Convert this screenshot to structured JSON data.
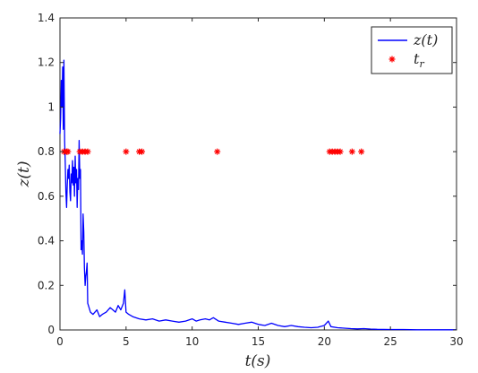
{
  "chart_data": {
    "type": "line",
    "xlabel": "t(s)",
    "ylabel": "z(t)",
    "xlim": [
      0,
      30
    ],
    "ylim": [
      0,
      1.4
    ],
    "xticks": [
      0,
      5,
      10,
      15,
      20,
      25,
      30
    ],
    "yticks": [
      0,
      0.2,
      0.4,
      0.6,
      0.8,
      1,
      1.2,
      1.4
    ],
    "xtick_labels": [
      "0",
      "5",
      "10",
      "15",
      "20",
      "25",
      "30"
    ],
    "ytick_labels": [
      "0",
      "0.2",
      "0.4",
      "0.6",
      "0.8",
      "1",
      "1.2",
      "1.4"
    ],
    "grid": false,
    "legend_position": "top-right",
    "series": [
      {
        "name": "z(t)",
        "style": "line",
        "color": "#0000ff",
        "x": [
          0,
          0.05,
          0.1,
          0.15,
          0.2,
          0.25,
          0.3,
          0.35,
          0.4,
          0.45,
          0.5,
          0.55,
          0.6,
          0.65,
          0.7,
          0.75,
          0.8,
          0.85,
          0.9,
          0.95,
          1.0,
          1.05,
          1.1,
          1.15,
          1.2,
          1.25,
          1.3,
          1.35,
          1.4,
          1.45,
          1.5,
          1.55,
          1.6,
          1.65,
          1.7,
          1.75,
          1.8,
          1.85,
          1.9,
          1.95,
          2.0,
          2.05,
          2.1,
          2.2,
          2.3,
          2.5,
          2.8,
          3.0,
          3.2,
          3.5,
          3.8,
          4.0,
          4.2,
          4.4,
          4.6,
          4.8,
          4.9,
          5.0,
          5.2,
          5.5,
          6.0,
          6.5,
          7.0,
          7.5,
          8.0,
          8.5,
          9.0,
          9.5,
          10.0,
          10.3,
          10.6,
          11.0,
          11.3,
          11.6,
          12.0,
          12.5,
          13.0,
          13.5,
          14.0,
          14.5,
          15.0,
          15.5,
          16.0,
          16.5,
          17.0,
          17.5,
          18.0,
          18.5,
          19.0,
          19.5,
          20.0,
          20.3,
          20.5,
          21.0,
          21.5,
          22.0,
          22.5,
          23.0,
          23.5,
          24.0,
          25.0,
          26.0,
          27.0,
          28.0,
          29.0,
          30.0
        ],
        "y": [
          0.88,
          0.95,
          1.12,
          1.0,
          1.18,
          0.9,
          1.21,
          0.85,
          0.75,
          0.62,
          0.55,
          0.65,
          0.72,
          0.68,
          0.74,
          0.62,
          0.58,
          0.7,
          0.66,
          0.76,
          0.65,
          0.73,
          0.6,
          0.78,
          0.66,
          0.72,
          0.55,
          0.68,
          0.63,
          0.85,
          0.68,
          0.72,
          0.36,
          0.4,
          0.34,
          0.52,
          0.44,
          0.28,
          0.2,
          0.24,
          0.26,
          0.3,
          0.12,
          0.1,
          0.08,
          0.07,
          0.09,
          0.06,
          0.07,
          0.08,
          0.1,
          0.09,
          0.08,
          0.11,
          0.09,
          0.12,
          0.18,
          0.08,
          0.07,
          0.06,
          0.05,
          0.045,
          0.05,
          0.04,
          0.045,
          0.04,
          0.035,
          0.04,
          0.05,
          0.04,
          0.045,
          0.05,
          0.045,
          0.055,
          0.04,
          0.035,
          0.03,
          0.025,
          0.03,
          0.035,
          0.025,
          0.02,
          0.03,
          0.02,
          0.015,
          0.02,
          0.015,
          0.012,
          0.01,
          0.012,
          0.02,
          0.04,
          0.015,
          0.01,
          0.008,
          0.006,
          0.005,
          0.006,
          0.004,
          0.003,
          0.002,
          0.002,
          0.001,
          0.001,
          0.001,
          0.001
        ]
      },
      {
        "name": "t_r",
        "style": "markers",
        "marker": "asterisk",
        "color": "#ff0000",
        "x": [
          0.3,
          0.5,
          0.6,
          1.5,
          1.7,
          1.9,
          2.1,
          5.0,
          6.0,
          6.2,
          11.9,
          20.4,
          20.6,
          20.8,
          21.0,
          21.2,
          22.1,
          22.8
        ],
        "y": [
          0.8,
          0.8,
          0.8,
          0.8,
          0.8,
          0.8,
          0.8,
          0.8,
          0.8,
          0.8,
          0.8,
          0.8,
          0.8,
          0.8,
          0.8,
          0.8,
          0.8,
          0.8
        ]
      }
    ]
  }
}
